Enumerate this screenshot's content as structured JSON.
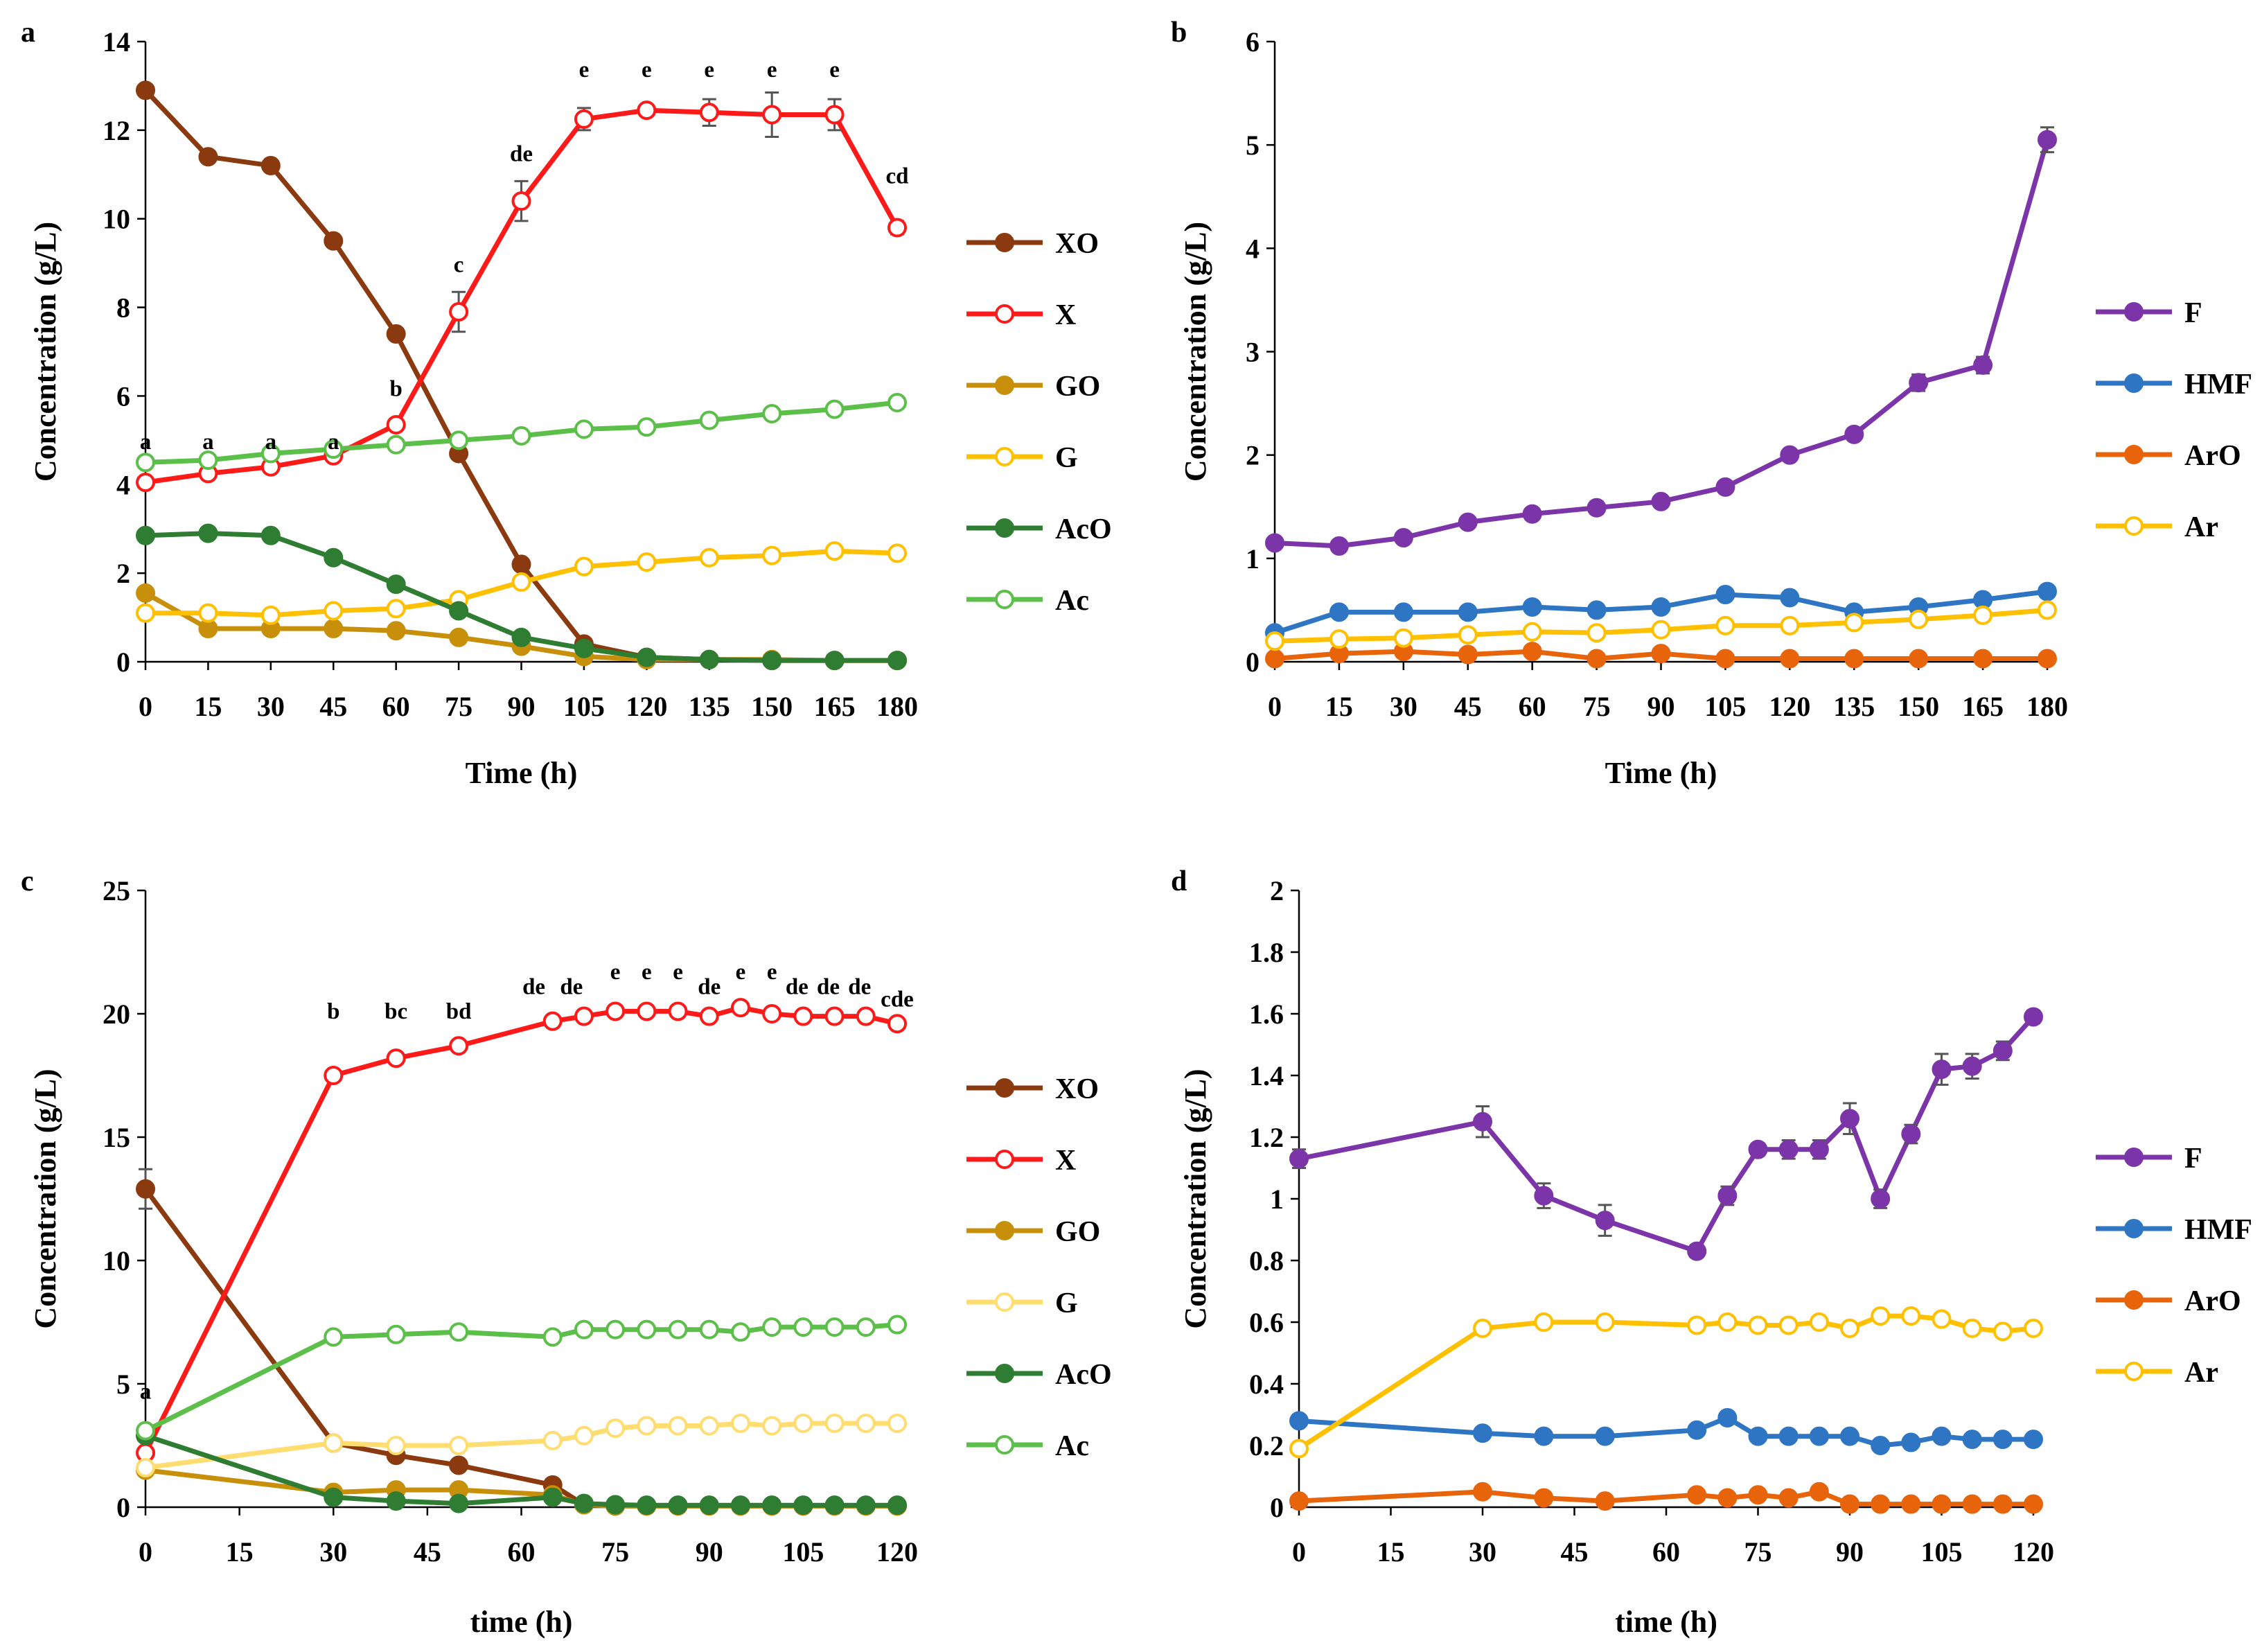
{
  "chart_data": [
    {
      "panel": "a",
      "type": "line",
      "xlabel": "Time (h)",
      "ylabel": "Concentration (g/L)",
      "ylim": [
        0,
        14
      ],
      "xlim": [
        0,
        180
      ],
      "xticks": [
        0,
        15,
        30,
        45,
        60,
        75,
        90,
        105,
        120,
        135,
        150,
        165,
        180
      ],
      "yticks": [
        0,
        2,
        4,
        6,
        8,
        10,
        12,
        14
      ],
      "ytick_labels": [
        "0",
        "2",
        "4",
        "6",
        "8",
        "10",
        "12",
        "14"
      ],
      "x": [
        0,
        15,
        30,
        45,
        60,
        75,
        90,
        105,
        120,
        135,
        150,
        165,
        180
      ],
      "series": [
        {
          "name": "XO",
          "color": "#8B3A0F",
          "marker": "filled",
          "values": [
            12.9,
            11.4,
            11.2,
            9.5,
            7.4,
            4.7,
            2.2,
            0.4,
            0.1,
            0.05,
            0.03,
            0.03,
            0.03
          ]
        },
        {
          "name": "X",
          "color": "#FF1A1A",
          "marker": "open",
          "values": [
            4.05,
            4.25,
            4.4,
            4.65,
            5.35,
            7.9,
            10.4,
            12.25,
            12.45,
            12.4,
            12.35,
            12.35,
            9.8
          ],
          "errors": [
            0,
            0,
            0,
            0,
            0.1,
            0.45,
            0.45,
            0.25,
            0.1,
            0.3,
            0.5,
            0.35,
            0.15
          ]
        },
        {
          "name": "GO",
          "color": "#C8900A",
          "marker": "filled",
          "values": [
            1.55,
            0.75,
            0.75,
            0.75,
            0.7,
            0.55,
            0.35,
            0.12,
            0.05,
            0.05,
            0.05,
            0.03,
            0.03
          ]
        },
        {
          "name": "G",
          "color": "#FFC000",
          "marker": "open",
          "values": [
            1.1,
            1.1,
            1.05,
            1.15,
            1.2,
            1.4,
            1.8,
            2.15,
            2.25,
            2.35,
            2.4,
            2.5,
            2.45
          ]
        },
        {
          "name": "AcO",
          "color": "#2E7D32",
          "marker": "filled",
          "values": [
            2.85,
            2.9,
            2.85,
            2.35,
            1.75,
            1.15,
            0.55,
            0.3,
            0.1,
            0.05,
            0.03,
            0.03,
            0.03
          ]
        },
        {
          "name": "Ac",
          "color": "#5BBF4A",
          "marker": "open",
          "values": [
            4.5,
            4.55,
            4.7,
            4.8,
            4.9,
            5.0,
            5.1,
            5.25,
            5.3,
            5.45,
            5.6,
            5.7,
            5.85
          ]
        }
      ],
      "annotations": [
        {
          "text": "a",
          "x": 0,
          "y": 4.8
        },
        {
          "text": "a",
          "x": 15,
          "y": 4.8
        },
        {
          "text": "a",
          "x": 30,
          "y": 4.8
        },
        {
          "text": "a",
          "x": 45,
          "y": 4.8
        },
        {
          "text": "b",
          "x": 60,
          "y": 6.0
        },
        {
          "text": "c",
          "x": 75,
          "y": 8.8
        },
        {
          "text": "de",
          "x": 90,
          "y": 11.3
        },
        {
          "text": "e",
          "x": 105,
          "y": 13.2
        },
        {
          "text": "e",
          "x": 120,
          "y": 13.2
        },
        {
          "text": "e",
          "x": 135,
          "y": 13.2
        },
        {
          "text": "e",
          "x": 150,
          "y": 13.2
        },
        {
          "text": "e",
          "x": 165,
          "y": 13.2
        },
        {
          "text": "cd",
          "x": 180,
          "y": 10.8
        }
      ]
    },
    {
      "panel": "b",
      "type": "line",
      "xlabel": "Time (h)",
      "ylabel": "Concentration (g/L)",
      "ylim": [
        0,
        6
      ],
      "xlim": [
        0,
        180
      ],
      "xticks": [
        0,
        15,
        30,
        45,
        60,
        75,
        90,
        105,
        120,
        135,
        150,
        165,
        180
      ],
      "yticks": [
        0,
        1,
        2,
        3,
        4,
        5,
        6
      ],
      "ytick_labels": [
        "0",
        "1",
        "2",
        "3",
        "4",
        "5",
        "6"
      ],
      "x": [
        0,
        15,
        30,
        45,
        60,
        75,
        90,
        105,
        120,
        135,
        150,
        165,
        180
      ],
      "series": [
        {
          "name": "F",
          "color": "#7B35A8",
          "marker": "filled",
          "values": [
            1.15,
            1.12,
            1.2,
            1.35,
            1.43,
            1.49,
            1.55,
            1.69,
            2.0,
            2.2,
            2.7,
            2.87,
            5.05
          ],
          "errors": [
            0.03,
            0.03,
            0.03,
            0.05,
            0.04,
            0.06,
            0.05,
            0.05,
            0.05,
            0.05,
            0.08,
            0.08,
            0.12
          ]
        },
        {
          "name": "HMF",
          "color": "#2E75C4",
          "marker": "filled",
          "values": [
            0.28,
            0.48,
            0.48,
            0.48,
            0.53,
            0.5,
            0.53,
            0.65,
            0.62,
            0.48,
            0.53,
            0.6,
            0.68
          ]
        },
        {
          "name": "ArO",
          "color": "#E8640A",
          "marker": "filled",
          "values": [
            0.03,
            0.08,
            0.1,
            0.07,
            0.1,
            0.03,
            0.08,
            0.03,
            0.03,
            0.03,
            0.03,
            0.03,
            0.03
          ]
        },
        {
          "name": "Ar",
          "color": "#FFC000",
          "marker": "open",
          "values": [
            0.2,
            0.22,
            0.23,
            0.26,
            0.29,
            0.28,
            0.31,
            0.35,
            0.35,
            0.38,
            0.41,
            0.45,
            0.5
          ]
        }
      ],
      "annotations": []
    },
    {
      "panel": "c",
      "type": "line",
      "xlabel": "time (h)",
      "ylabel": "Concentration (g/L)",
      "ylim": [
        0,
        25
      ],
      "xlim": [
        0,
        120
      ],
      "xticks": [
        0,
        15,
        30,
        45,
        60,
        75,
        90,
        105,
        120
      ],
      "yticks": [
        0,
        5,
        10,
        15,
        20,
        25
      ],
      "ytick_labels": [
        "0",
        "5",
        "10",
        "15",
        "20",
        "25"
      ],
      "x": [
        0,
        30,
        40,
        50,
        65,
        70,
        75,
        80,
        85,
        90,
        95,
        100,
        105,
        110,
        115,
        120
      ],
      "series": [
        {
          "name": "XO",
          "color": "#8B3A0F",
          "marker": "filled",
          "x": [
            0,
            30,
            40,
            50,
            65,
            70,
            75,
            80,
            85,
            90,
            95,
            100,
            105,
            110,
            115,
            120
          ],
          "values": [
            12.9,
            2.6,
            2.1,
            1.7,
            0.9,
            0.1,
            0.05,
            0.05,
            0.05,
            0.05,
            0.05,
            0.05,
            0.05,
            0.05,
            0.05,
            0.05
          ],
          "errors": [
            0.8,
            0,
            0,
            0,
            0,
            0,
            0,
            0,
            0,
            0,
            0,
            0,
            0,
            0,
            0,
            0
          ]
        },
        {
          "name": "X",
          "color": "#FF1A1A",
          "marker": "open",
          "x": [
            0,
            30,
            40,
            50,
            65,
            70,
            75,
            80,
            85,
            90,
            95,
            100,
            105,
            110,
            115,
            120
          ],
          "values": [
            2.2,
            17.5,
            18.2,
            18.7,
            19.7,
            19.9,
            20.1,
            20.1,
            20.1,
            19.9,
            20.25,
            20.0,
            19.9,
            19.9,
            19.9,
            19.6
          ]
        },
        {
          "name": "GO",
          "color": "#C8900A",
          "marker": "filled",
          "x": [
            0,
            30,
            40,
            50,
            65,
            70,
            75,
            80,
            85,
            90,
            95,
            100,
            105,
            110,
            115,
            120
          ],
          "values": [
            1.5,
            0.6,
            0.7,
            0.7,
            0.5,
            0.1,
            0.05,
            0.05,
            0.05,
            0.05,
            0.05,
            0.05,
            0.05,
            0.05,
            0.05,
            0.05
          ]
        },
        {
          "name": "G",
          "color": "#FFDD70",
          "marker": "open",
          "x": [
            0,
            30,
            40,
            50,
            65,
            70,
            75,
            80,
            85,
            90,
            95,
            100,
            105,
            110,
            115,
            120
          ],
          "values": [
            1.6,
            2.6,
            2.5,
            2.5,
            2.7,
            2.9,
            3.2,
            3.3,
            3.3,
            3.3,
            3.4,
            3.3,
            3.4,
            3.4,
            3.4,
            3.4
          ]
        },
        {
          "name": "AcO",
          "color": "#2E7D32",
          "marker": "filled",
          "x": [
            0,
            30,
            40,
            50,
            65,
            70,
            75,
            80,
            85,
            90,
            95,
            100,
            105,
            110,
            115,
            120
          ],
          "values": [
            2.9,
            0.4,
            0.25,
            0.15,
            0.4,
            0.15,
            0.1,
            0.08,
            0.08,
            0.08,
            0.08,
            0.08,
            0.08,
            0.08,
            0.08,
            0.08
          ]
        },
        {
          "name": "Ac",
          "color": "#5BBF4A",
          "marker": "open",
          "x": [
            0,
            30,
            40,
            50,
            65,
            70,
            75,
            80,
            85,
            90,
            95,
            100,
            105,
            110,
            115,
            120
          ],
          "values": [
            3.1,
            6.9,
            7.0,
            7.1,
            6.9,
            7.2,
            7.2,
            7.2,
            7.2,
            7.2,
            7.1,
            7.3,
            7.3,
            7.3,
            7.3,
            7.4
          ]
        }
      ],
      "annotations": [
        {
          "text": "a",
          "x": 0,
          "y": 4.4
        },
        {
          "text": "b",
          "x": 30,
          "y": 19.8
        },
        {
          "text": "bc",
          "x": 40,
          "y": 19.8
        },
        {
          "text": "bd",
          "x": 50,
          "y": 19.8
        },
        {
          "text": "de",
          "x": 62,
          "y": 20.8
        },
        {
          "text": "de",
          "x": 68,
          "y": 20.8
        },
        {
          "text": "e",
          "x": 75,
          "y": 21.4
        },
        {
          "text": "e",
          "x": 80,
          "y": 21.4
        },
        {
          "text": "e",
          "x": 85,
          "y": 21.4
        },
        {
          "text": "de",
          "x": 90,
          "y": 20.8
        },
        {
          "text": "e",
          "x": 95,
          "y": 21.4
        },
        {
          "text": "e",
          "x": 100,
          "y": 21.4
        },
        {
          "text": "de",
          "x": 104,
          "y": 20.8
        },
        {
          "text": "de",
          "x": 109,
          "y": 20.8
        },
        {
          "text": "de",
          "x": 114,
          "y": 20.8
        },
        {
          "text": "cde",
          "x": 120,
          "y": 20.3
        }
      ]
    },
    {
      "panel": "d",
      "type": "line",
      "xlabel": "time (h)",
      "ylabel": "Concentration (g/L)",
      "ylim": [
        0,
        2
      ],
      "xlim": [
        0,
        120
      ],
      "xticks": [
        0,
        15,
        30,
        45,
        60,
        75,
        90,
        105,
        120
      ],
      "yticks": [
        0,
        0.2,
        0.4,
        0.6,
        0.8,
        1.0,
        1.2,
        1.4,
        1.6,
        1.8,
        2.0
      ],
      "ytick_labels": [
        "0",
        "0.2",
        "0.4",
        "0.6",
        "0.8",
        "1",
        "1.2",
        "1.4",
        "1.6",
        "1.8",
        "2"
      ],
      "x": [
        0,
        30,
        40,
        50,
        65,
        70,
        75,
        80,
        85,
        90,
        95,
        100,
        105,
        110,
        115,
        120
      ],
      "series": [
        {
          "name": "F",
          "color": "#7B35A8",
          "marker": "filled",
          "x": [
            0,
            30,
            40,
            50,
            65,
            70,
            75,
            80,
            85,
            90,
            95,
            100,
            105,
            110,
            115,
            120
          ],
          "values": [
            1.13,
            1.25,
            1.01,
            0.93,
            0.83,
            1.01,
            1.16,
            1.16,
            1.16,
            1.26,
            1.0,
            1.21,
            1.42,
            1.43,
            1.48,
            1.59
          ],
          "errors": [
            0.03,
            0.05,
            0.04,
            0.05,
            0.02,
            0.03,
            0.02,
            0.03,
            0.03,
            0.05,
            0.03,
            0.03,
            0.05,
            0.04,
            0.03,
            0.02
          ]
        },
        {
          "name": "HMF",
          "color": "#2E75C4",
          "marker": "filled",
          "x": [
            0,
            30,
            40,
            50,
            65,
            70,
            75,
            80,
            85,
            90,
            95,
            100,
            105,
            110,
            115,
            120
          ],
          "values": [
            0.28,
            0.24,
            0.23,
            0.23,
            0.25,
            0.29,
            0.23,
            0.23,
            0.23,
            0.23,
            0.2,
            0.21,
            0.23,
            0.22,
            0.22,
            0.22
          ]
        },
        {
          "name": "ArO",
          "color": "#E8640A",
          "marker": "filled",
          "x": [
            0,
            30,
            40,
            50,
            65,
            70,
            75,
            80,
            85,
            90,
            95,
            100,
            105,
            110,
            115,
            120
          ],
          "values": [
            0.02,
            0.05,
            0.03,
            0.02,
            0.04,
            0.03,
            0.04,
            0.03,
            0.05,
            0.01,
            0.01,
            0.01,
            0.01,
            0.01,
            0.01,
            0.01
          ]
        },
        {
          "name": "Ar",
          "color": "#FFC000",
          "marker": "open",
          "x": [
            0,
            30,
            40,
            50,
            65,
            70,
            75,
            80,
            85,
            90,
            95,
            100,
            105,
            110,
            115,
            120
          ],
          "values": [
            0.19,
            0.58,
            0.6,
            0.6,
            0.59,
            0.6,
            0.59,
            0.59,
            0.6,
            0.58,
            0.62,
            0.62,
            0.61,
            0.58,
            0.57,
            0.58
          ]
        }
      ],
      "annotations": []
    }
  ]
}
